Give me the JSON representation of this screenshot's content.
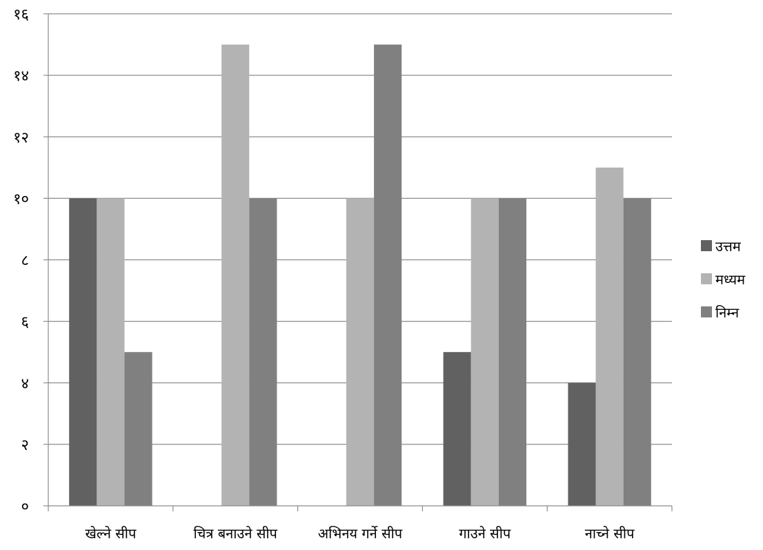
{
  "chart_data": {
    "type": "bar",
    "title": "",
    "xlabel": "",
    "ylabel": "",
    "categories": [
      "खेल्ने सीप",
      "चित्र बनाउने सीप",
      "अभिनय गर्ने सीप",
      "गाउने सीप",
      "नाच्ने सीप"
    ],
    "series": [
      {
        "name": "उत्तम",
        "values": [
          10,
          0,
          0,
          5,
          4
        ],
        "color": "#616161"
      },
      {
        "name": "मध्यम",
        "values": [
          10,
          15,
          10,
          10,
          11
        ],
        "color": "#b3b3b3"
      },
      {
        "name": "निम्न",
        "values": [
          5,
          10,
          15,
          10,
          10
        ],
        "color": "#808080"
      }
    ],
    "ylim": [
      0,
      16
    ],
    "ytick_labels": [
      "०",
      "२",
      "४",
      "६",
      "८",
      "१०",
      "१२",
      "१४",
      "१६"
    ],
    "grid": true,
    "legend_position": "right"
  }
}
